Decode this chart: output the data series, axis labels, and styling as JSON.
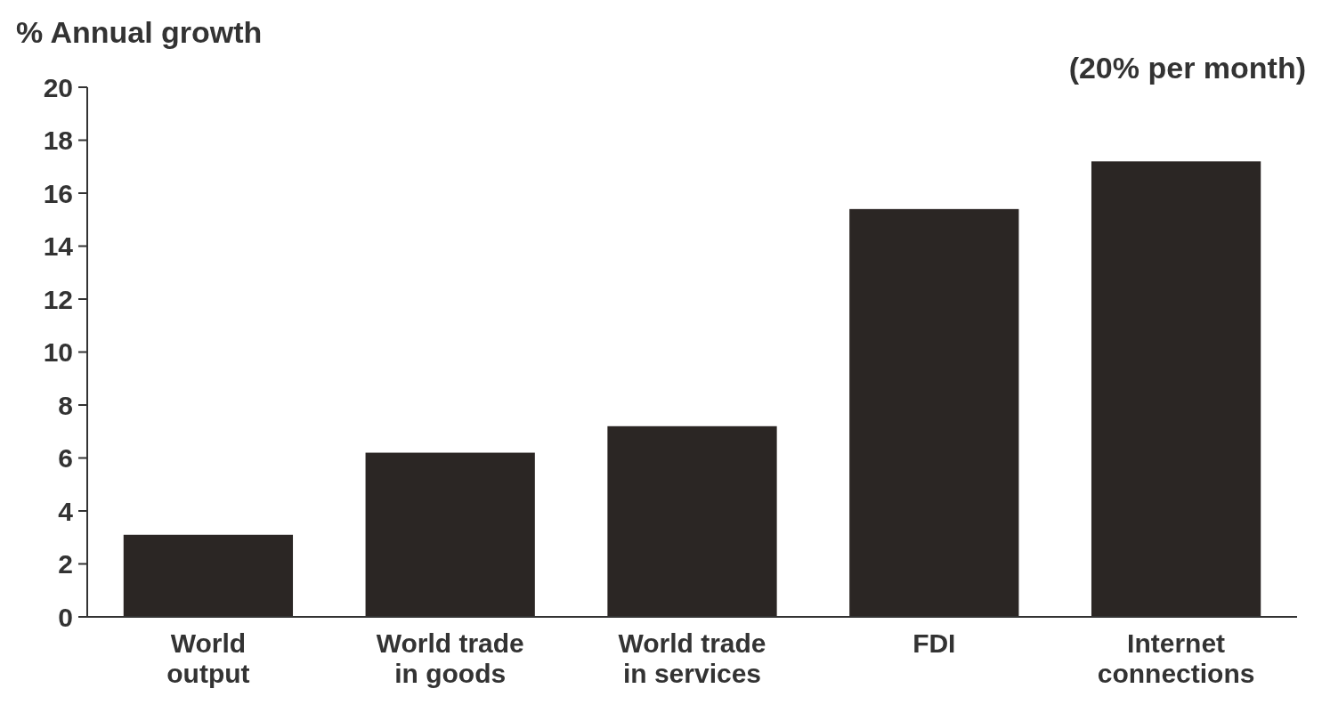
{
  "chart_data": {
    "type": "bar",
    "ylabel": "% Annual growth",
    "categories": [
      "World output",
      "World trade in goods",
      "World trade in services",
      "FDI",
      "Internet connections"
    ],
    "values": [
      3.1,
      6.2,
      7.2,
      15.4,
      17.2
    ],
    "color": "#2b2624",
    "ylim": [
      0,
      20
    ],
    "yticks": [
      0,
      2,
      4,
      6,
      8,
      10,
      12,
      14,
      16,
      18,
      20
    ],
    "grid": false,
    "annotations": [
      "(20% per month)"
    ]
  }
}
